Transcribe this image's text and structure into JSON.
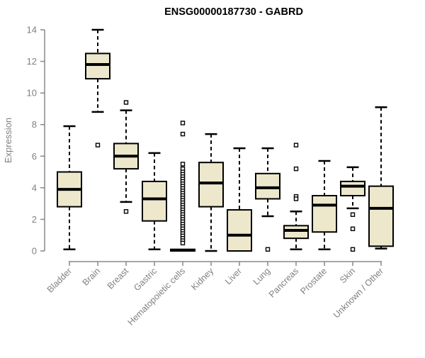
{
  "header": {
    "title": "ENSG00000187730 - GABRD"
  },
  "colors": {
    "box_fill": "#EDE8CC",
    "box_stroke": "#000000",
    "median": "#000000",
    "whisker": "#000000",
    "axis": "#888888",
    "tick_label": "#808080",
    "title": "#000000",
    "outlier_fill": "#ffffff",
    "background": "#ffffff"
  },
  "chart_data": {
    "type": "boxplot",
    "title": "ENSG00000187730 - GABRD",
    "xlabel": "",
    "ylabel": "Expression",
    "ylim": [
      0,
      14
    ],
    "yticks": [
      0,
      2,
      4,
      6,
      8,
      10,
      12,
      14
    ],
    "grid": false,
    "legend": null,
    "categories": [
      "Bladder",
      "Brain",
      "Breast",
      "Gastric",
      "Hematopoietic cells",
      "Kidney",
      "Liver",
      "Lung",
      "Pancreas",
      "Prostate",
      "Skin",
      "Unknown / Other"
    ],
    "series": [
      {
        "name": "Bladder",
        "min": 0.1,
        "q1": 2.8,
        "median": 3.9,
        "q3": 5.0,
        "max": 7.9,
        "outliers": []
      },
      {
        "name": "Brain",
        "min": 8.8,
        "q1": 10.9,
        "median": 11.8,
        "q3": 12.5,
        "max": 14.0,
        "outliers": [
          6.7
        ]
      },
      {
        "name": "Breast",
        "min": 3.1,
        "q1": 5.2,
        "median": 6.0,
        "q3": 6.8,
        "max": 8.9,
        "outliers": [
          9.4,
          2.5
        ]
      },
      {
        "name": "Gastric",
        "min": 0.1,
        "q1": 1.9,
        "median": 3.3,
        "q3": 4.4,
        "max": 6.2,
        "outliers": []
      },
      {
        "name": "Hematopoietic cells",
        "min": 0.0,
        "q1": 0.0,
        "median": 0.05,
        "q3": 0.1,
        "max": 0.15,
        "outliers": [
          8.1,
          7.4,
          5.5,
          5.2,
          5.0,
          4.85,
          4.7,
          4.55,
          4.4,
          4.25,
          4.1,
          3.95,
          3.8,
          3.65,
          3.5,
          3.35,
          3.2,
          3.05,
          2.9,
          2.75,
          2.6,
          2.45,
          2.3,
          2.15,
          2.0,
          1.85,
          1.7,
          1.55,
          1.4,
          1.25,
          1.1,
          0.95,
          0.8,
          0.65,
          0.5
        ]
      },
      {
        "name": "Kidney",
        "min": 0.0,
        "q1": 2.8,
        "median": 4.3,
        "q3": 5.6,
        "max": 7.4,
        "outliers": []
      },
      {
        "name": "Liver",
        "min": 0.0,
        "q1": 0.0,
        "median": 1.0,
        "q3": 2.6,
        "max": 6.5,
        "outliers": []
      },
      {
        "name": "Lung",
        "min": 2.2,
        "q1": 3.3,
        "median": 4.0,
        "q3": 4.9,
        "max": 6.5,
        "outliers": [
          0.1
        ]
      },
      {
        "name": "Pancreas",
        "min": 0.1,
        "q1": 0.8,
        "median": 1.3,
        "q3": 1.6,
        "max": 2.5,
        "outliers": [
          6.7,
          5.2,
          3.45,
          3.3
        ]
      },
      {
        "name": "Prostate",
        "min": 0.1,
        "q1": 1.2,
        "median": 2.9,
        "q3": 3.5,
        "max": 5.7,
        "outliers": []
      },
      {
        "name": "Skin",
        "min": 2.7,
        "q1": 3.5,
        "median": 4.1,
        "q3": 4.4,
        "max": 5.3,
        "outliers": [
          2.3,
          1.4,
          0.1
        ]
      },
      {
        "name": "Unknown / Other",
        "min": 0.15,
        "q1": 0.3,
        "median": 2.7,
        "q3": 4.1,
        "max": 9.1,
        "outliers": []
      }
    ]
  }
}
